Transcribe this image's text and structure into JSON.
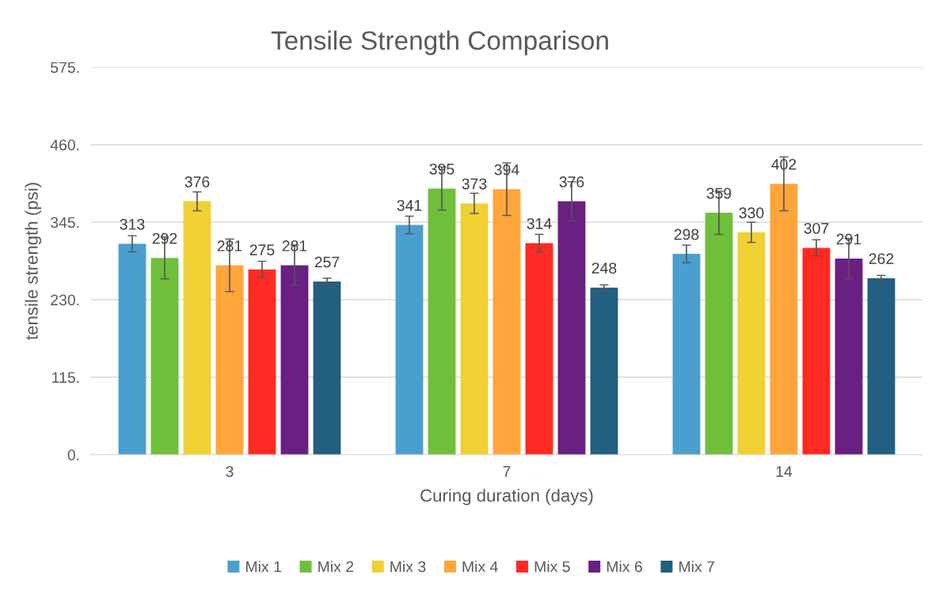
{
  "chart_data": {
    "type": "bar",
    "title": "Tensile Strength Comparison",
    "xlabel": "Curing duration (days)",
    "ylabel": "tensile strength (psi)",
    "categories": [
      "3",
      "7",
      "14"
    ],
    "series": [
      {
        "name": "Mix 1",
        "color": "#4a9fcf",
        "values": [
          313,
          341,
          298
        ],
        "errors": [
          12,
          13,
          13
        ]
      },
      {
        "name": "Mix 2",
        "color": "#6fbf3b",
        "values": [
          292,
          395,
          359
        ],
        "errors": [
          31,
          32,
          32
        ]
      },
      {
        "name": "Mix 3",
        "color": "#f0d032",
        "values": [
          376,
          373,
          330
        ],
        "errors": [
          14,
          15,
          15
        ]
      },
      {
        "name": "Mix 4",
        "color": "#ffa53a",
        "values": [
          281,
          394,
          402
        ],
        "errors": [
          39,
          39,
          40
        ]
      },
      {
        "name": "Mix 5",
        "color": "#ff2a22",
        "values": [
          275,
          314,
          307
        ],
        "errors": [
          12,
          13,
          12
        ]
      },
      {
        "name": "Mix 6",
        "color": "#6a1f82",
        "values": [
          281,
          376,
          291
        ],
        "errors": [
          30,
          29,
          30
        ]
      },
      {
        "name": "Mix 7",
        "color": "#235f80",
        "values": [
          257,
          248,
          262
        ],
        "errors": [
          5,
          4,
          4
        ]
      }
    ],
    "ylim": [
      0,
      575
    ],
    "yticks": [
      {
        "value": 0,
        "label": "0."
      },
      {
        "value": 115,
        "label": "115."
      },
      {
        "value": 230,
        "label": "230."
      },
      {
        "value": 345,
        "label": "345."
      },
      {
        "value": 460,
        "label": "460."
      },
      {
        "value": 575,
        "label": "575."
      }
    ],
    "grid": "y",
    "legend": "bottom",
    "data_labels": true
  }
}
